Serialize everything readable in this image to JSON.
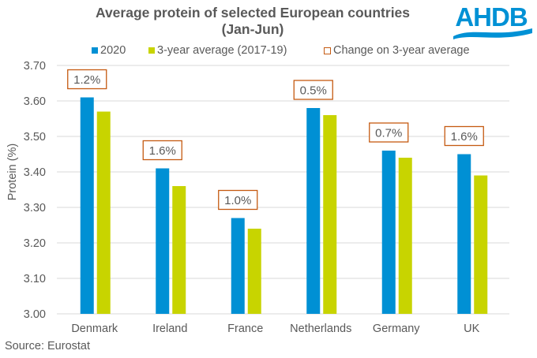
{
  "chart_data": {
    "type": "bar",
    "title": [
      "Average protein of selected European countries",
      "(Jan-Jun)"
    ],
    "xlabel": "",
    "ylabel": "Protein (%)",
    "ylim": [
      3.0,
      3.7
    ],
    "yticks": [
      "3.00",
      "3.10",
      "3.20",
      "3.30",
      "3.40",
      "3.50",
      "3.60",
      "3.70"
    ],
    "ytick_values": [
      3.0,
      3.1,
      3.2,
      3.3,
      3.4,
      3.5,
      3.6,
      3.7
    ],
    "grid": true,
    "legend_position": "top",
    "categories": [
      "Denmark",
      "Ireland",
      "France",
      "Netherlands",
      "Germany",
      "UK"
    ],
    "series": [
      {
        "name": "2020",
        "color": "#0090D4",
        "values": [
          3.61,
          3.41,
          3.27,
          3.58,
          3.46,
          3.45
        ]
      },
      {
        "name": "3-year average (2017-19)",
        "color": "#C8D400",
        "values": [
          3.57,
          3.36,
          3.24,
          3.56,
          3.44,
          3.39
        ]
      }
    ],
    "annotations": {
      "name": "Change on 3-year average",
      "border_color": "#C55A11",
      "labels": [
        "1.2%",
        "1.6%",
        "1.0%",
        "0.5%",
        "0.7%",
        "1.6%"
      ]
    }
  },
  "legend": {
    "items": [
      {
        "label": "2020",
        "color": "#0090D4",
        "kind": "filled"
      },
      {
        "label": "3-year average (2017-19)",
        "color": "#C8D400",
        "kind": "filled"
      },
      {
        "label": "Change on 3-year average",
        "color": "#C55A11",
        "kind": "outline"
      }
    ]
  },
  "logo": {
    "text": "AHDB",
    "color": "#0091D5"
  },
  "source": "Source:  Eurostat",
  "colors": {
    "gridline": "#D9D9D9",
    "text": "#595959"
  }
}
